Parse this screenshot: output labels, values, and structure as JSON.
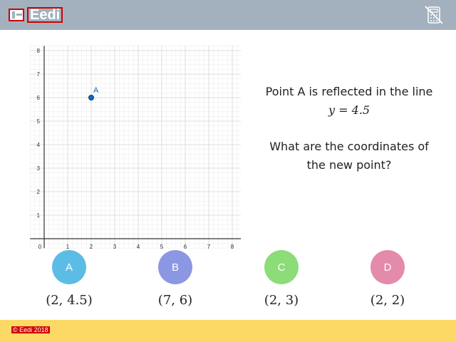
{
  "header": {
    "brand": "Eedi",
    "calculator_icon": "calculator-disabled-icon",
    "background": "#a3b1bf"
  },
  "question": {
    "line1": "Point A is reflected in the line",
    "equation": "y = 4.5",
    "line3": "What are the coordinates of",
    "line4": "the new point?"
  },
  "chart_data": {
    "type": "scatter",
    "x_ticks": [
      "0",
      "1",
      "2",
      "3",
      "4",
      "5",
      "6",
      "7",
      "8"
    ],
    "y_ticks": [
      "1",
      "2",
      "3",
      "4",
      "5",
      "6",
      "7",
      "8"
    ],
    "xlim": [
      0,
      8
    ],
    "ylim": [
      0,
      8
    ],
    "grid": true,
    "points": [
      {
        "label": "A",
        "x": 2,
        "y": 6
      }
    ]
  },
  "choices": [
    {
      "letter": "A",
      "answer": "(2, 4.5)",
      "color": "#5bbde6"
    },
    {
      "letter": "B",
      "answer": "(7, 6)",
      "color": "#8b97e2"
    },
    {
      "letter": "C",
      "answer": "(2, 3)",
      "color": "#8cdc78"
    },
    {
      "letter": "D",
      "answer": "(2, 2)",
      "color": "#e48aaa"
    }
  ],
  "footer": {
    "copyright": "© Eedi 2018",
    "background": "#fcd865"
  }
}
